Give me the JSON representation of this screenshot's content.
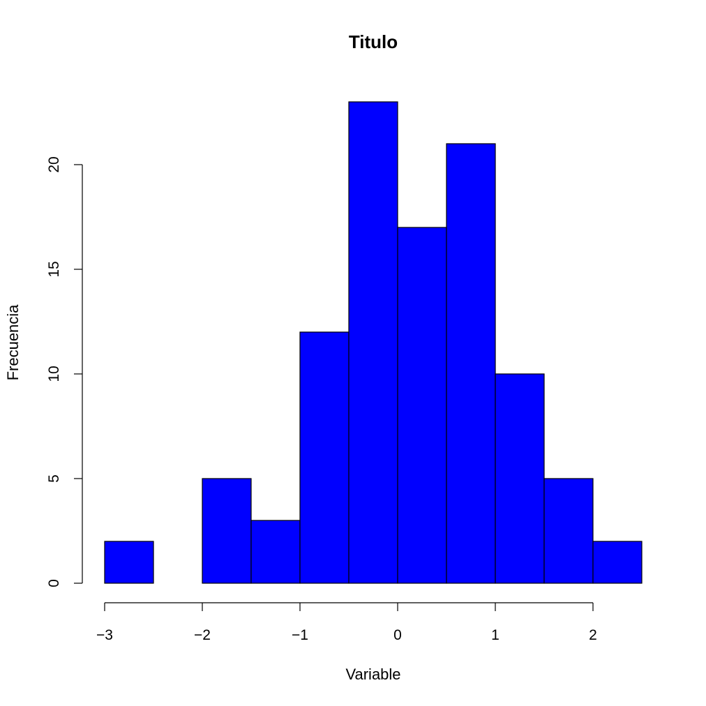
{
  "chart_data": {
    "type": "bar",
    "title": "Titulo",
    "xlabel": "Variable",
    "ylabel": "Frecuencia",
    "bin_edges": [
      -3,
      -2.5,
      -2,
      -1.5,
      -1,
      -0.5,
      0,
      0.5,
      1,
      1.5,
      2,
      2.5
    ],
    "values": [
      2,
      0,
      5,
      3,
      12,
      23,
      17,
      21,
      10,
      5,
      2
    ],
    "xlim": [
      -3,
      2.5
    ],
    "ylim": [
      0,
      23
    ],
    "x_ticks": [
      -3,
      -2,
      -1,
      0,
      1,
      2
    ],
    "x_tick_labels": [
      "−3",
      "−2",
      "−1",
      "0",
      "1",
      "2"
    ],
    "y_ticks": [
      0,
      5,
      10,
      15,
      20
    ],
    "y_tick_labels": [
      "0",
      "5",
      "10",
      "15",
      "20"
    ],
    "grid": false,
    "bar_color": "#0000ff",
    "edge_color": "#000000"
  }
}
